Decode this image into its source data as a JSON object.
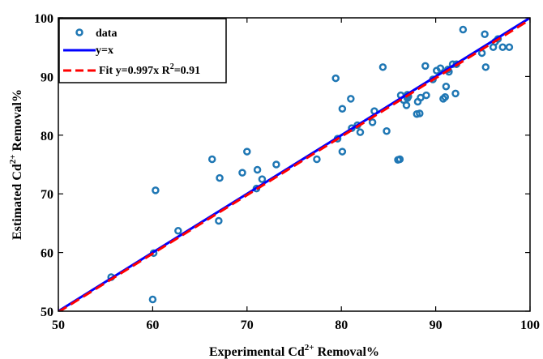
{
  "chart_data": {
    "type": "scatter",
    "xlabel": {
      "pre": "Experimental Cd",
      "sup": "2+",
      "post": " Removal%"
    },
    "ylabel": {
      "pre": "Estimated Cd",
      "sup": "2+",
      "post": " Removal%"
    },
    "xlim": [
      50,
      100
    ],
    "ylim": [
      50,
      100
    ],
    "xticks": [
      "50",
      "60",
      "70",
      "80",
      "90",
      "100"
    ],
    "yticks": [
      "50",
      "60",
      "70",
      "80",
      "90",
      "100"
    ],
    "grid": false,
    "legend_position": "top-left",
    "legend": {
      "data": "data",
      "identity": "y=x",
      "fit": {
        "pre": "Fit y=0.997x R",
        "sup": "2",
        "post": "=0.91"
      }
    },
    "colors": {
      "data": "#1f77b4",
      "identity": "#0000ff",
      "fit": "#ff0000"
    },
    "fit_slope": 0.997,
    "series": [
      {
        "name": "data",
        "points": [
          [
            55.6,
            55.8
          ],
          [
            60.0,
            52.0
          ],
          [
            60.1,
            59.9
          ],
          [
            60.3,
            70.6
          ],
          [
            62.7,
            63.7
          ],
          [
            66.3,
            75.9
          ],
          [
            67.0,
            65.4
          ],
          [
            67.1,
            72.7
          ],
          [
            69.5,
            73.6
          ],
          [
            70.0,
            77.2
          ],
          [
            71.0,
            70.9
          ],
          [
            71.1,
            74.1
          ],
          [
            71.6,
            72.5
          ],
          [
            73.1,
            75.0
          ],
          [
            77.4,
            75.9
          ],
          [
            79.4,
            89.7
          ],
          [
            79.6,
            79.4
          ],
          [
            80.1,
            77.2
          ],
          [
            80.1,
            84.5
          ],
          [
            81.0,
            86.2
          ],
          [
            81.1,
            81.2
          ],
          [
            81.7,
            81.7
          ],
          [
            82.0,
            80.5
          ],
          [
            83.3,
            82.2
          ],
          [
            83.5,
            84.1
          ],
          [
            84.4,
            91.6
          ],
          [
            84.8,
            80.7
          ],
          [
            86.0,
            75.8
          ],
          [
            86.2,
            75.9
          ],
          [
            86.3,
            86.8
          ],
          [
            86.6,
            86.0
          ],
          [
            86.9,
            85.1
          ],
          [
            87.0,
            86.3
          ],
          [
            87.1,
            86.6
          ],
          [
            87.0,
            86.9
          ],
          [
            88.0,
            83.6
          ],
          [
            88.1,
            85.7
          ],
          [
            88.3,
            83.7
          ],
          [
            88.4,
            86.4
          ],
          [
            88.9,
            91.8
          ],
          [
            89.0,
            86.8
          ],
          [
            89.7,
            89.5
          ],
          [
            90.1,
            91.0
          ],
          [
            90.5,
            91.4
          ],
          [
            90.8,
            86.2
          ],
          [
            91.0,
            86.5
          ],
          [
            91.1,
            88.3
          ],
          [
            91.3,
            91.2
          ],
          [
            91.4,
            90.8
          ],
          [
            91.8,
            92.1
          ],
          [
            92.1,
            87.1
          ],
          [
            92.2,
            92.1
          ],
          [
            92.9,
            98.0
          ],
          [
            94.9,
            94.0
          ],
          [
            95.2,
            97.2
          ],
          [
            95.3,
            91.6
          ],
          [
            96.1,
            95.0
          ],
          [
            96.3,
            95.9
          ],
          [
            96.6,
            96.4
          ],
          [
            97.1,
            95.0
          ],
          [
            97.8,
            95.0
          ]
        ]
      }
    ]
  }
}
